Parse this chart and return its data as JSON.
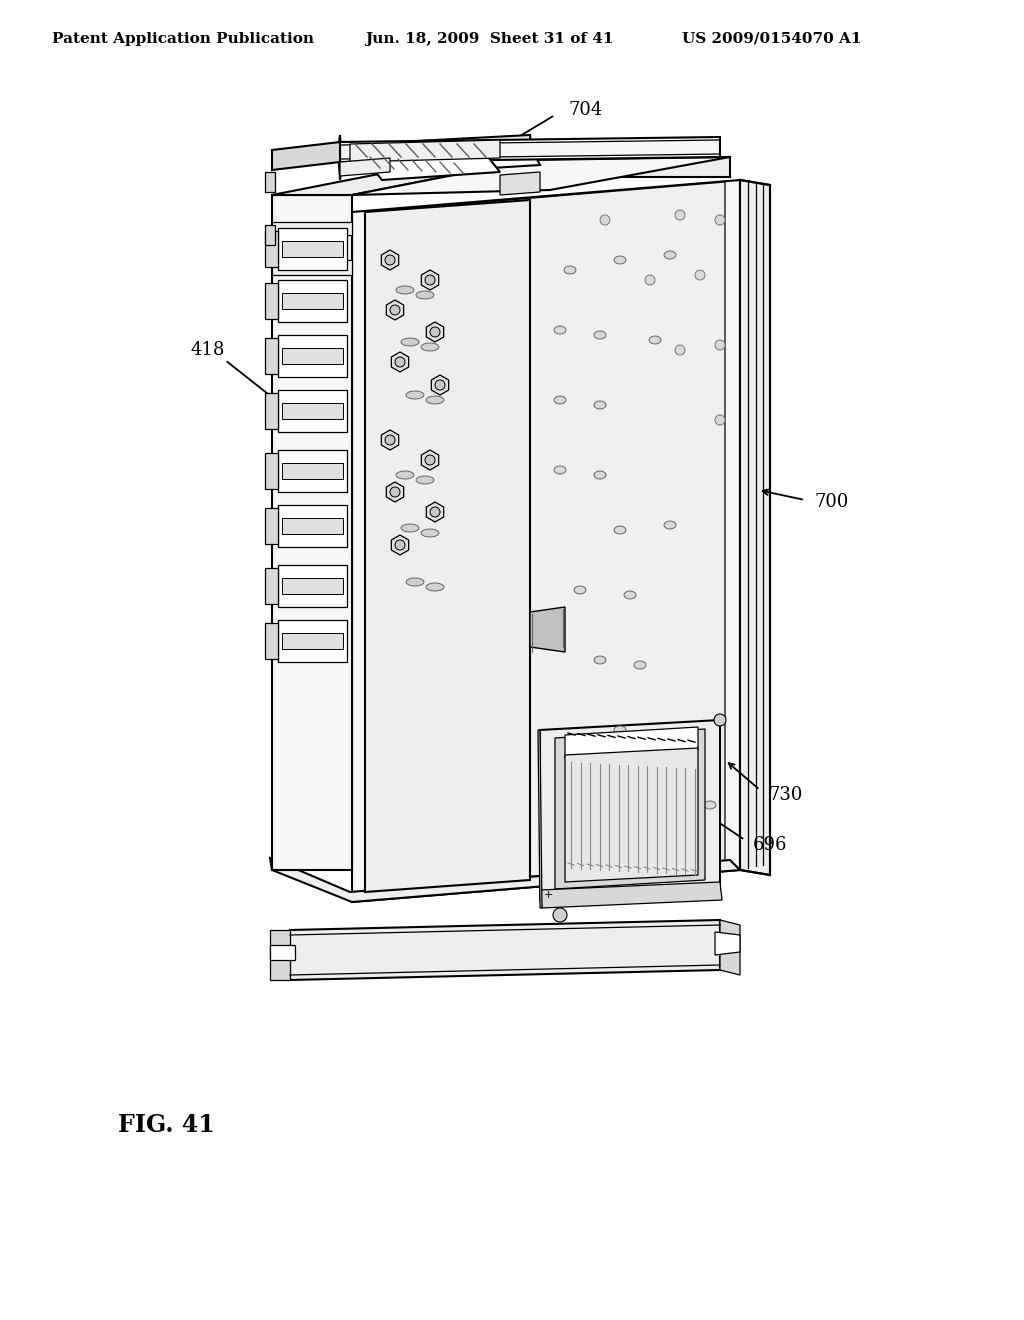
{
  "bg_color": "#ffffff",
  "header_left": "Patent Application Publication",
  "header_mid": "Jun. 18, 2009  Sheet 31 of 41",
  "header_right": "US 2009/0154070 A1",
  "fig_label": "FIG. 41",
  "label_418": "418",
  "label_704": "704",
  "label_700": "700",
  "label_730": "730",
  "label_696": "696",
  "header_fontsize": 11,
  "fig_label_fontsize": 17,
  "annotation_fontsize": 13,
  "line_color": "#000000",
  "lw_main": 1.5,
  "lw_thin": 0.9,
  "lw_thick": 2.0,
  "fc_board": "#f7f7f7",
  "fc_side": "#eeeeee",
  "fc_dark": "#d8d8d8",
  "fc_white": "#ffffff"
}
